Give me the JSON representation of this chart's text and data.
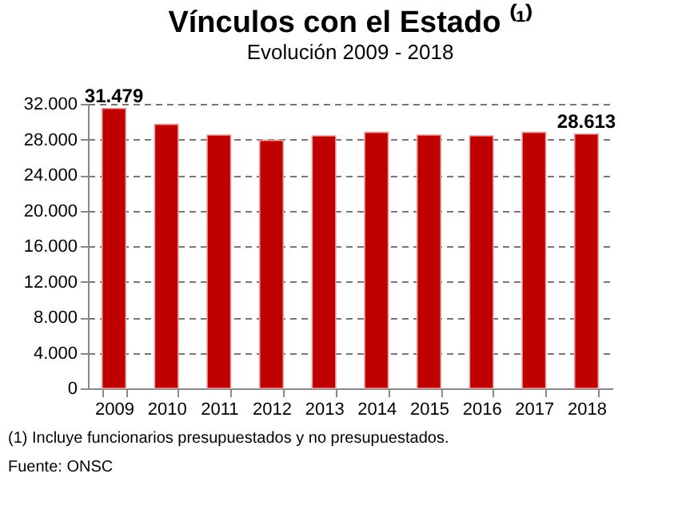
{
  "chart_data": {
    "type": "bar",
    "title": "Vínculos con el Estado ⁽¹⁾",
    "subtitle": "Evolución 2009 - 2018",
    "categories": [
      "2009",
      "2010",
      "2011",
      "2012",
      "2013",
      "2014",
      "2015",
      "2016",
      "2017",
      "2018"
    ],
    "values": [
      31479,
      29700,
      28500,
      27900,
      28400,
      28800,
      28500,
      28400,
      28800,
      28613
    ],
    "value_labels": [
      "31.479",
      null,
      null,
      null,
      null,
      null,
      null,
      null,
      null,
      "28.613"
    ],
    "color": "#c00000",
    "ylim": [
      0,
      32000
    ],
    "yticks": [
      0,
      {
        "value": 4000,
        "label": "4.000"
      },
      {
        "value": 8000,
        "label": "8.000"
      },
      {
        "value": 12000,
        "label": "12.000"
      },
      {
        "value": 16000,
        "label": "16.000"
      },
      {
        "value": 20000,
        "label": "20.000"
      },
      {
        "value": 24000,
        "label": "24.000"
      },
      {
        "value": 28000,
        "label": "28.000"
      },
      {
        "value": 32000,
        "label": "32.000"
      }
    ],
    "grid": "y",
    "line_style": "dashed",
    "annotations": [
      "(1) Incluye funcionarios presupuestados y no presupuestados.",
      "Fuente: ONSC"
    ]
  }
}
